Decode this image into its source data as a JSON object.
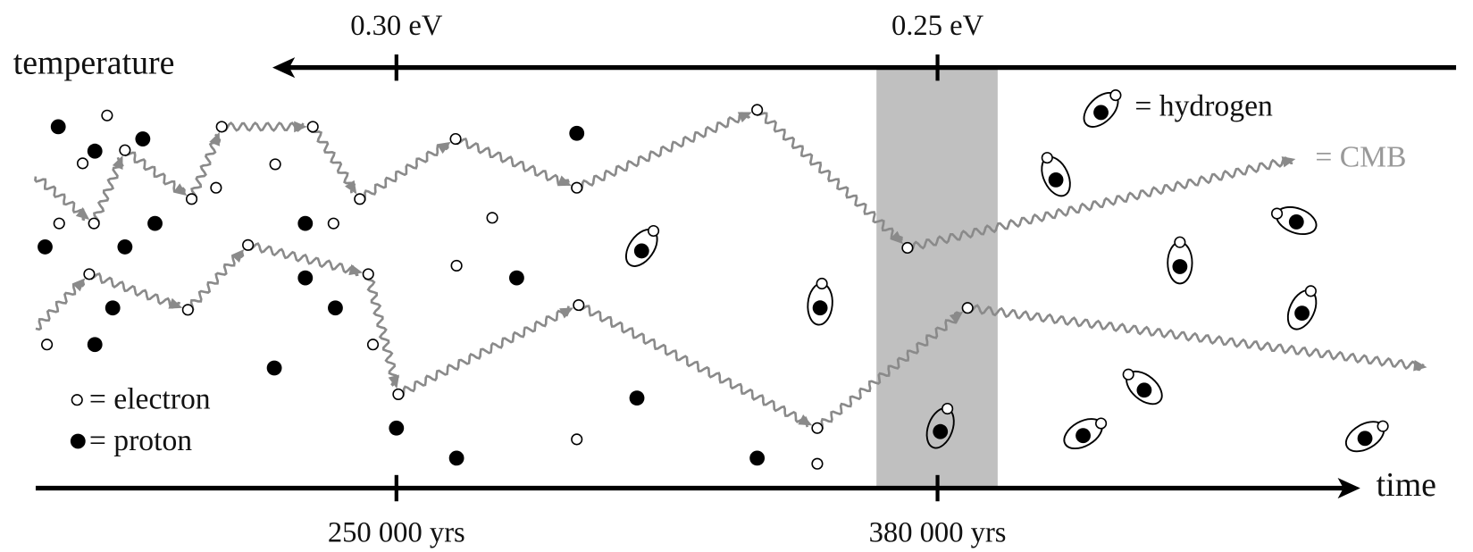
{
  "top_axis": {
    "label": "temperature",
    "ticks": [
      "0.30 eV",
      "0.25 eV"
    ]
  },
  "bottom_axis": {
    "label": "time",
    "ticks": [
      "250 000 yrs",
      "380 000 yrs"
    ]
  },
  "legend": {
    "electron": "= electron",
    "proton": "= proton",
    "hydrogen": "= hydrogen",
    "cmb": "= CMB"
  }
}
